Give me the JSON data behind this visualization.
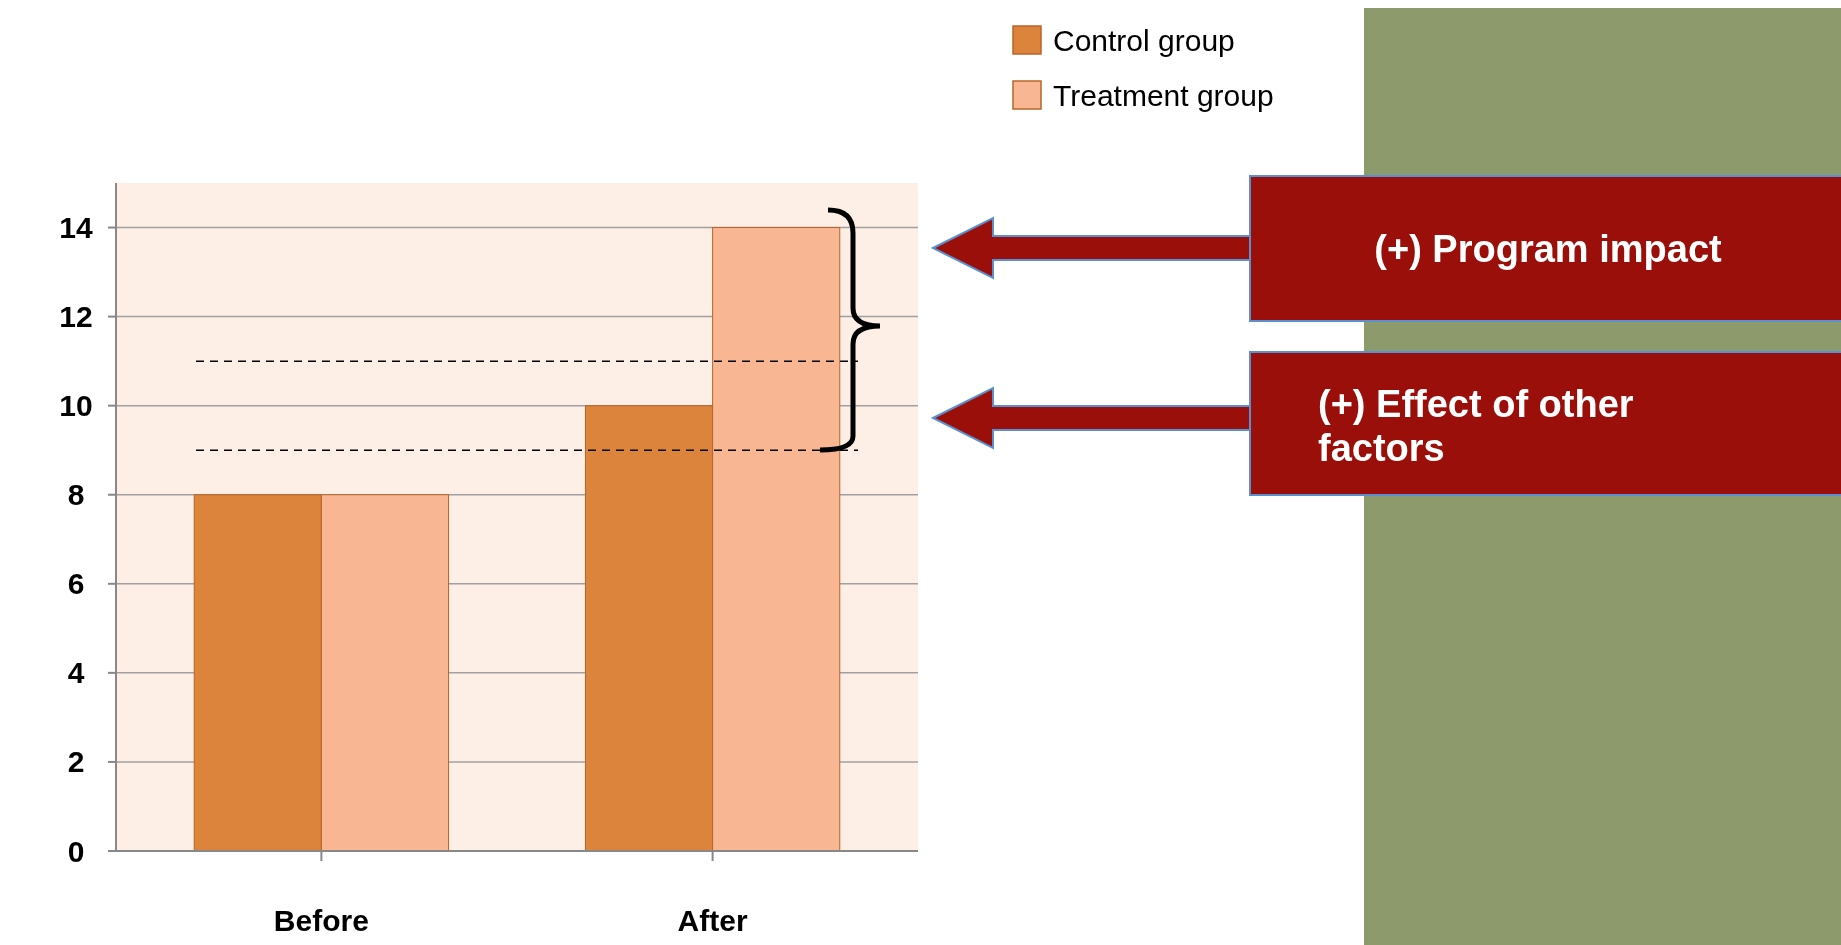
{
  "chart_data": {
    "type": "bar",
    "categories": [
      "Before",
      "After"
    ],
    "series": [
      {
        "name": "Control group",
        "color": "#dc843c",
        "values": [
          8,
          10
        ]
      },
      {
        "name": "Treatment group",
        "color": "#f9b693",
        "values": [
          8,
          14
        ]
      }
    ],
    "ylim": [
      0,
      15
    ],
    "yticks": [
      0,
      2,
      4,
      6,
      8,
      10,
      12,
      14
    ],
    "grid": "y",
    "legend": "top",
    "ref_lines": [
      {
        "axis": "y",
        "value": 9,
        "color": "#000000",
        "line_style": "dashed"
      },
      {
        "axis": "y",
        "value": 11,
        "color": "#000000",
        "line_style": "dashed"
      }
    ],
    "annotations": [
      "(+) Program impact",
      "(+) Effect of other factors"
    ]
  }
}
